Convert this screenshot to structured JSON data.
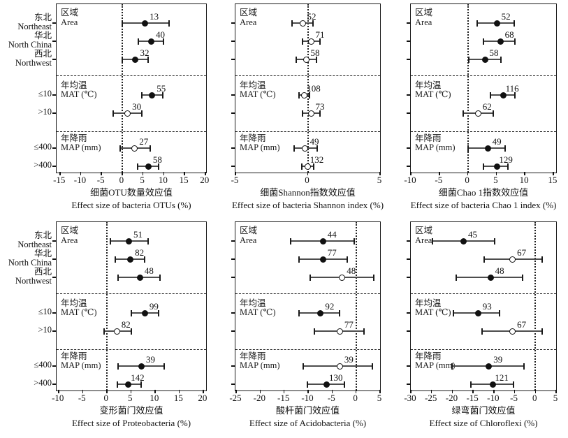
{
  "figure_name": "Effect sizes of bacteria diversity and phyla across area, MAT and MAP groups",
  "sections": [
    {
      "zh": "区域",
      "en": "Area"
    },
    {
      "zh": "年均温",
      "en": "MAT (℃)"
    },
    {
      "zh": "年降雨",
      "en": "MAP (mm)"
    }
  ],
  "y_axis": [
    {
      "line1": "东北",
      "line2": "Northeast"
    },
    {
      "line1": "华北",
      "line2": "North China"
    },
    {
      "line1": "西北",
      "line2": "Northwest"
    },
    {
      "line1": "≤10"
    },
    {
      "line1": ">10"
    },
    {
      "line1": "≤400"
    },
    {
      "line1": ">400"
    }
  ],
  "row_names": [
    "Northeast",
    "North China",
    "Northwest",
    "MAT ≤10",
    "MAT >10",
    "MAP ≤400",
    "MAP >400"
  ],
  "marker_colors": {
    "significant_fill": "#111111",
    "nonsignificant_fill": "#ffffff",
    "bar": "#4d4d4d"
  },
  "chart_data": [
    {
      "type": "scatter",
      "subtype": "forest",
      "title_zh": "细菌OTU数量效应值",
      "title_en": "Effect size of bacteria OTUs (%)",
      "xlim": [
        -15.8,
        20.2
      ],
      "ticks": [
        -15,
        -10,
        -5,
        0,
        5,
        10,
        15,
        20
      ],
      "points": [
        {
          "row": "Northeast",
          "n": 13,
          "mean": 5.5,
          "ci": [
            0.0,
            11.3
          ],
          "filled": true
        },
        {
          "row": "North China",
          "n": 40,
          "mean": 7.0,
          "ci": [
            3.8,
            10.0
          ],
          "filled": true
        },
        {
          "row": "Northwest",
          "n": 32,
          "mean": 3.2,
          "ci": [
            0.0,
            6.3
          ],
          "filled": true
        },
        {
          "row": "MAT ≤10",
          "n": 55,
          "mean": 7.2,
          "ci": [
            4.7,
            9.7
          ],
          "filled": true
        },
        {
          "row": "MAT >10",
          "n": 30,
          "mean": 1.3,
          "ci": [
            -2.2,
            4.7
          ],
          "filled": false
        },
        {
          "row": "MAP ≤400",
          "n": 27,
          "mean": 3.0,
          "ci": [
            -0.5,
            6.7
          ],
          "filled": false
        },
        {
          "row": "MAP >400",
          "n": 58,
          "mean": 6.3,
          "ci": [
            3.7,
            8.8
          ],
          "filled": true
        }
      ]
    },
    {
      "type": "scatter",
      "subtype": "forest",
      "title_zh": "细菌Shannon指数效应值",
      "title_en": "Effect size of bacteria Shannon index (%)",
      "xlim": [
        -5,
        5
      ],
      "ticks": [
        -5,
        0,
        5
      ],
      "points": [
        {
          "row": "Northeast",
          "n": 52,
          "mean": -0.36,
          "ci": [
            -1.08,
            0.36
          ],
          "filled": false
        },
        {
          "row": "North China",
          "n": 71,
          "mean": 0.22,
          "ci": [
            -0.36,
            0.84
          ],
          "filled": false
        },
        {
          "row": "Northwest",
          "n": 58,
          "mean": -0.12,
          "ci": [
            -0.79,
            0.6
          ],
          "filled": false
        },
        {
          "row": "MAT ≤10",
          "n": 108,
          "mean": -0.22,
          "ci": [
            -0.6,
            0.12
          ],
          "filled": false
        },
        {
          "row": "MAT >10",
          "n": 73,
          "mean": 0.22,
          "ci": [
            -0.36,
            0.84
          ],
          "filled": false
        },
        {
          "row": "MAP ≤400",
          "n": 49,
          "mean": -0.17,
          "ci": [
            -0.93,
            0.65
          ],
          "filled": false
        },
        {
          "row": "MAP >400",
          "n": 132,
          "mean": 0.0,
          "ci": [
            -0.4,
            0.4
          ],
          "filled": false
        }
      ]
    },
    {
      "type": "scatter",
      "subtype": "forest",
      "title_zh": "细菌Chao 1指数效应值",
      "title_en": "Effect size of bacteria Chao 1 index (%)",
      "xlim": [
        -10,
        15.5
      ],
      "ticks": [
        -10,
        -5,
        0,
        5,
        10,
        15
      ],
      "points": [
        {
          "row": "Northeast",
          "n": 52,
          "mean": 5.1,
          "ci": [
            1.6,
            8.1
          ],
          "filled": true
        },
        {
          "row": "North China",
          "n": 68,
          "mean": 5.7,
          "ci": [
            2.8,
            8.3
          ],
          "filled": true
        },
        {
          "row": "Northwest",
          "n": 58,
          "mean": 3.0,
          "ci": [
            0.2,
            5.8
          ],
          "filled": true
        },
        {
          "row": "MAT ≤10",
          "n": 116,
          "mean": 6.2,
          "ci": [
            4.0,
            8.3
          ],
          "filled": true
        },
        {
          "row": "MAT >10",
          "n": 62,
          "mean": 1.8,
          "ci": [
            -0.8,
            4.5
          ],
          "filled": false
        },
        {
          "row": "MAP ≤400",
          "n": 49,
          "mean": 3.5,
          "ci": [
            0.1,
            6.5
          ],
          "filled": true
        },
        {
          "row": "MAP >400",
          "n": 129,
          "mean": 5.1,
          "ci": [
            2.8,
            7.0
          ],
          "filled": true
        }
      ]
    },
    {
      "type": "scatter",
      "subtype": "forest",
      "title_zh": "变形菌门效应值",
      "title_en": "Effect size of Proteobacteria (%)",
      "xlim": [
        -10.4,
        20.6
      ],
      "ticks": [
        -10,
        -5,
        0,
        5,
        10,
        15,
        20
      ],
      "points": [
        {
          "row": "Northeast",
          "n": 51,
          "mean": 4.6,
          "ci": [
            0.7,
            8.6
          ],
          "filled": true
        },
        {
          "row": "North China",
          "n": 82,
          "mean": 4.9,
          "ci": [
            1.7,
            7.9
          ],
          "filled": true
        },
        {
          "row": "Northwest",
          "n": 48,
          "mean": 6.9,
          "ci": [
            2.4,
            11.0
          ],
          "filled": true
        },
        {
          "row": "MAT ≤10",
          "n": 99,
          "mean": 7.9,
          "ci": [
            5.1,
            10.7
          ],
          "filled": true
        },
        {
          "row": "MAT >10",
          "n": 82,
          "mean": 2.1,
          "ci": [
            -0.6,
            5.1
          ],
          "filled": false
        },
        {
          "row": "MAP ≤400",
          "n": 39,
          "mean": 7.2,
          "ci": [
            2.4,
            11.9
          ],
          "filled": true
        },
        {
          "row": "MAP >400",
          "n": 142,
          "mean": 4.5,
          "ci": [
            2.2,
            7.1
          ],
          "filled": true
        }
      ]
    },
    {
      "type": "scatter",
      "subtype": "forest",
      "title_zh": "酸杆菌门效应值",
      "title_en": "Effect size of Acidobacteria (%)",
      "xlim": [
        -25.15,
        5
      ],
      "ticks": [
        -25,
        -20,
        -15,
        -10,
        -5,
        0,
        5
      ],
      "points": [
        {
          "row": "Northeast",
          "n": 44,
          "mean": -6.9,
          "ci": [
            -13.7,
            -0.4
          ],
          "filled": true
        },
        {
          "row": "North China",
          "n": 77,
          "mean": -6.9,
          "ci": [
            -11.9,
            -1.9
          ],
          "filled": true
        },
        {
          "row": "Northwest",
          "n": 48,
          "mean": -2.9,
          "ci": [
            -9.6,
            3.7
          ],
          "filled": false
        },
        {
          "row": "MAT ≤10",
          "n": 92,
          "mean": -7.4,
          "ci": [
            -11.9,
            -3.4
          ],
          "filled": true
        },
        {
          "row": "MAT >10",
          "n": 77,
          "mean": -3.4,
          "ci": [
            -8.7,
            1.7
          ],
          "filled": false
        },
        {
          "row": "MAP ≤400",
          "n": 39,
          "mean": -3.4,
          "ci": [
            -11.0,
            3.4
          ],
          "filled": false
        },
        {
          "row": "MAP >400",
          "n": 130,
          "mean": -6.1,
          "ci": [
            -10.1,
            -2.4
          ],
          "filled": true
        }
      ]
    },
    {
      "type": "scatter",
      "subtype": "forest",
      "title_zh": "绿弯菌门效应值",
      "title_en": "Effect size of Chloroflexi (%)",
      "xlim": [
        -30,
        5
      ],
      "ticks": [
        -30,
        -25,
        -20,
        -15,
        -10,
        -5,
        0,
        5
      ],
      "points": [
        {
          "row": "Northeast",
          "n": 45,
          "mean": -17.3,
          "ci": [
            -24.8,
            -9.8
          ],
          "filled": true
        },
        {
          "row": "North China",
          "n": 67,
          "mean": -5.5,
          "ci": [
            -12.3,
            1.7
          ],
          "filled": false
        },
        {
          "row": "Northwest",
          "n": 48,
          "mean": -10.8,
          "ci": [
            -19.0,
            -3.0
          ],
          "filled": true
        },
        {
          "row": "MAT ≤10",
          "n": 93,
          "mean": -13.8,
          "ci": [
            -19.7,
            -8.7
          ],
          "filled": true
        },
        {
          "row": "MAT >10",
          "n": 67,
          "mean": -5.5,
          "ci": [
            -12.8,
            1.7
          ],
          "filled": false
        },
        {
          "row": "MAP ≤400",
          "n": 39,
          "mean": -11.2,
          "ci": [
            -20.0,
            -2.8
          ],
          "filled": true
        },
        {
          "row": "MAP >400",
          "n": 121,
          "mean": -10.3,
          "ci": [
            -15.5,
            -5.3
          ],
          "filled": true
        }
      ]
    }
  ]
}
